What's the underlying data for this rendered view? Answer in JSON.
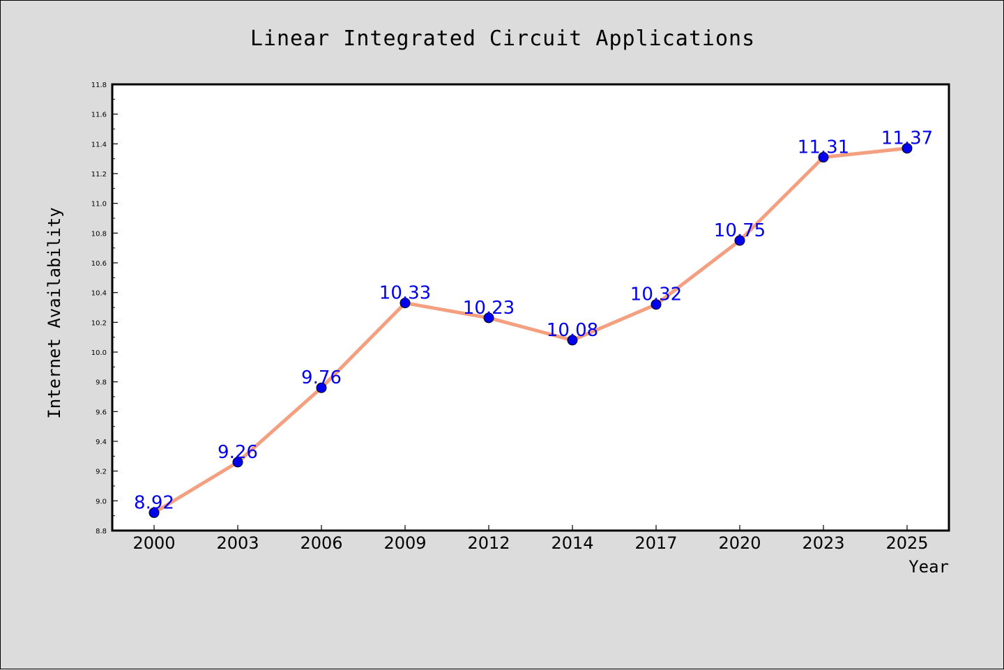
{
  "chart_data": {
    "type": "line",
    "title": "Linear Integrated Circuit Applications",
    "xlabel": "Year",
    "ylabel": "Internet Availability",
    "categories": [
      "2000",
      "2003",
      "2006",
      "2009",
      "2012",
      "2014",
      "2017",
      "2020",
      "2023",
      "2025"
    ],
    "series": [
      {
        "values": [
          8.92,
          9.26,
          9.76,
          10.33,
          10.23,
          10.08,
          10.32,
          10.75,
          11.31,
          11.37
        ],
        "labels": [
          "8.92",
          "9.26",
          "9.76",
          "10.33",
          "10.23",
          "10.08",
          "10.32",
          "10.75",
          "11.31",
          "11.37"
        ],
        "line_color": "#f4a080",
        "marker_color": "#0000ee",
        "label_color": "#0000ee"
      }
    ],
    "ylim": [
      8.8,
      11.8
    ],
    "y_ticks": [
      "8.8",
      "9.0",
      "9.2",
      "9.4",
      "9.6",
      "9.8",
      "10.0",
      "10.2",
      "10.4",
      "10.6",
      "10.8",
      "11.0",
      "11.2",
      "11.4",
      "11.6",
      "11.8"
    ],
    "grid": false,
    "legend": false,
    "background_color": "#dcdcdc",
    "plot_background": "#ffffff"
  }
}
